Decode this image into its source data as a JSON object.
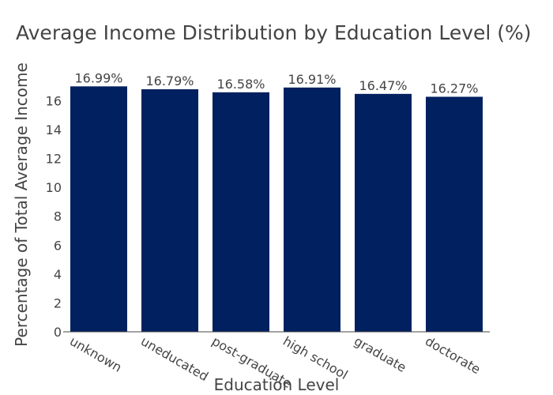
{
  "chart_data": {
    "type": "bar",
    "title": "Average Income Distribution by Education Level (%)",
    "xlabel": "Education Level",
    "ylabel": "Percentage of Total Average Income",
    "categories": [
      "unknown",
      "uneducated",
      "post-graduate",
      "high school",
      "graduate",
      "doctorate"
    ],
    "values": [
      16.99,
      16.79,
      16.58,
      16.91,
      16.47,
      16.27
    ],
    "data_labels": [
      "16.99%",
      "16.79%",
      "16.58%",
      "16.91%",
      "16.47%",
      "16.27%"
    ],
    "ylim": [
      0,
      17.5
    ],
    "yticks": [
      0,
      2,
      4,
      6,
      8,
      10,
      12,
      14,
      16
    ],
    "bar_color": "#002060",
    "grid": false,
    "legend": "none"
  }
}
